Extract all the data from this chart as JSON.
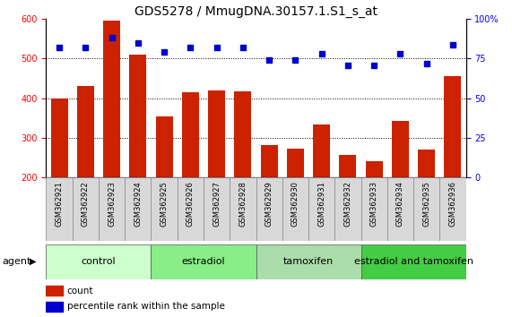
{
  "title": "GDS5278 / MmugDNA.30157.1.S1_s_at",
  "categories": [
    "GSM362921",
    "GSM362922",
    "GSM362923",
    "GSM362924",
    "GSM362925",
    "GSM362926",
    "GSM362927",
    "GSM362928",
    "GSM362929",
    "GSM362930",
    "GSM362931",
    "GSM362932",
    "GSM362933",
    "GSM362934",
    "GSM362935",
    "GSM362936"
  ],
  "counts": [
    400,
    430,
    595,
    510,
    355,
    415,
    420,
    418,
    283,
    272,
    335,
    257,
    242,
    342,
    270,
    455
  ],
  "percentile": [
    82,
    82,
    88,
    85,
    79,
    82,
    82,
    82,
    74,
    74,
    78,
    71,
    71,
    78,
    72,
    84
  ],
  "groups": [
    {
      "label": "control",
      "start": 0,
      "end": 4,
      "color": "#ccffcc"
    },
    {
      "label": "estradiol",
      "start": 4,
      "end": 8,
      "color": "#88ee88"
    },
    {
      "label": "tamoxifen",
      "start": 8,
      "end": 12,
      "color": "#aaddaa"
    },
    {
      "label": "estradiol and tamoxifen",
      "start": 12,
      "end": 16,
      "color": "#44cc44"
    }
  ],
  "ylim_left": [
    200,
    600
  ],
  "ylim_right": [
    0,
    100
  ],
  "yticks_left": [
    200,
    300,
    400,
    500,
    600
  ],
  "yticks_right": [
    0,
    25,
    50,
    75,
    100
  ],
  "hgrid_lines": [
    300,
    400,
    500
  ],
  "bar_color": "#cc2200",
  "dot_color": "#0000cc",
  "legend_count": "count",
  "legend_percentile": "percentile rank within the sample",
  "title_fontsize": 10,
  "tick_fontsize": 7,
  "group_fontsize": 8,
  "label_fontsize": 6
}
